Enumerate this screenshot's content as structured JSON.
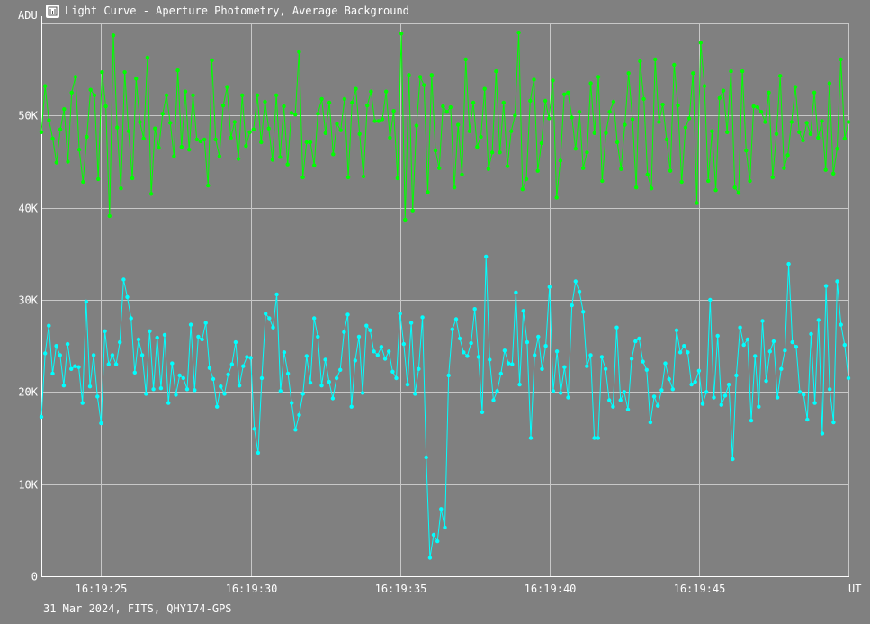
{
  "window": {
    "title": "Light Curve - Aperture Photometry, Average Background",
    "icon": "chart-app-icon",
    "footer": "31 Mar 2024, FITS, QHY174-GPS"
  },
  "colors": {
    "background": "#808080",
    "grid": "#c8c8c8",
    "text": "#ffffff",
    "series_green": "#00ff00",
    "series_cyan": "#00ffff"
  },
  "chart_data": {
    "type": "line",
    "title": "Light Curve - Aperture Photometry, Average Background",
    "ylabel": "ADU",
    "xlabel": "UT",
    "ylim": [
      0,
      60000
    ],
    "xlim": [
      23.0,
      50.0
    ],
    "grid": true,
    "y_ticks": [
      0,
      10000,
      20000,
      30000,
      40000,
      50000
    ],
    "y_tick_labels": [
      "0",
      "10K",
      "20K",
      "30K",
      "40K",
      "50K"
    ],
    "x_ticks": [
      25,
      30,
      35,
      40,
      45
    ],
    "x_tick_labels": [
      "16:19:25",
      "16:19:30",
      "16:19:35",
      "16:19:40",
      "16:19:45"
    ],
    "series": [
      {
        "values": [
          48200,
          53200,
          49500,
          47500,
          44900,
          48500,
          50700,
          45000,
          52500,
          54200,
          46300,
          42800,
          47700,
          52800,
          52200,
          43100,
          54700,
          51000,
          39100,
          58700,
          48700,
          42100,
          54700,
          48300,
          43200,
          54000,
          49300,
          47500,
          56300,
          41500,
          48600,
          46500,
          50200,
          52200,
          49200,
          45600,
          54900,
          46600,
          52600,
          46300,
          52200,
          47400,
          47200,
          47400,
          42400,
          56000,
          47400,
          45600,
          51100,
          53100,
          47600,
          49300,
          45300,
          52200,
          46700,
          48200,
          48500,
          52200,
          47100,
          51500,
          48600,
          45200,
          52200,
          45500,
          51000,
          44700,
          50300,
          50100,
          56900,
          43300,
          47100,
          47100,
          44600,
          50200,
          51800,
          48100,
          51400,
          45800,
          49100,
          48400,
          51800,
          43300,
          51400,
          52900,
          48000,
          43400,
          51100,
          52600,
          49400,
          49400,
          49600,
          52600,
          47600,
          50500,
          43200,
          58900,
          38700,
          54400,
          39700,
          48900,
          54200,
          53300,
          41700,
          54400,
          46200,
          44300,
          51000,
          50400,
          50900,
          42200,
          49000,
          43600,
          56100,
          48300,
          51400,
          46600,
          47700,
          52900,
          44200,
          46000,
          54800,
          46000,
          51400,
          44500,
          48300,
          50000,
          59000,
          42000,
          43100,
          51600,
          53900,
          44000,
          47000,
          51600,
          49700,
          53800,
          41100,
          45100,
          52300,
          52500,
          49800,
          46400,
          50400,
          44300,
          46000,
          53500,
          48100,
          54200,
          42900,
          48100,
          50400,
          51500,
          47100,
          44200,
          49000,
          54600,
          49600,
          42200,
          55900,
          51800,
          43600,
          42100,
          56100,
          49300,
          51200,
          47400,
          44000,
          55500,
          51100,
          42800,
          48700,
          49700,
          54600,
          40500,
          57900,
          53200,
          42900,
          48300,
          41900,
          51900,
          52700,
          48200,
          54800,
          42200,
          41600,
          54800,
          46200,
          42900,
          51000,
          50900,
          50400,
          49300,
          52500,
          43300,
          48000,
          54300,
          44300,
          45700,
          49300,
          53100,
          48200,
          47300,
          49200,
          48000,
          52500,
          47600,
          49400,
          44100,
          53500,
          43700,
          46400,
          56100,
          47500,
          49300
        ],
        "color": "#00ff00"
      },
      {
        "values": [
          17300,
          24200,
          27200,
          22000,
          25000,
          24000,
          20700,
          25200,
          22500,
          22800,
          22700,
          18800,
          29800,
          20600,
          24000,
          19500,
          16600,
          26600,
          23000,
          24000,
          23000,
          25400,
          32200,
          30300,
          28000,
          22100,
          25700,
          24000,
          19800,
          26600,
          20300,
          25900,
          20400,
          26200,
          18800,
          23100,
          19700,
          21800,
          21500,
          20300,
          27300,
          20200,
          26000,
          25700,
          27500,
          22600,
          21400,
          18400,
          20600,
          19800,
          21900,
          23000,
          25400,
          20700,
          22800,
          23800,
          23700,
          16000,
          13400,
          21500,
          28500,
          28000,
          27000,
          30600,
          20100,
          24300,
          22000,
          18800,
          15900,
          17500,
          19800,
          23900,
          21000,
          28000,
          26000,
          20700,
          23500,
          21100,
          19300,
          21500,
          22400,
          26500,
          28400,
          18400,
          23400,
          26000,
          19900,
          27200,
          26700,
          24400,
          24000,
          24900,
          23600,
          24400,
          22200,
          21500,
          28500,
          25200,
          20800,
          27500,
          19800,
          22500,
          28100,
          12900,
          2000,
          4500,
          3800,
          7300,
          5300,
          21800,
          26800,
          27900,
          25800,
          24300,
          23900,
          25300,
          29000,
          23800,
          17800,
          34700,
          23500,
          19100,
          20100,
          22000,
          24500,
          23100,
          23000,
          30800,
          20800,
          28800,
          25400,
          15000,
          24000,
          26000,
          22500,
          25000,
          31400,
          20100,
          24400,
          19900,
          22700,
          19400,
          29400,
          32000,
          30900,
          28700,
          22800,
          24000,
          15000,
          15000,
          23800,
          22500,
          19100,
          18400,
          27000,
          19100,
          20000,
          18100,
          23600,
          25500,
          25800,
          23300,
          22400,
          16700,
          19500,
          18500,
          20200,
          23100,
          21400,
          20300,
          26700,
          24300,
          25000,
          24300,
          20800,
          21100,
          22300,
          18700,
          20000,
          30000,
          19400,
          26100,
          18600,
          19600,
          20800,
          12700,
          21800,
          27000,
          25100,
          25700,
          16900,
          23900,
          18400,
          27700,
          21200,
          24400,
          25500,
          19400,
          22500,
          24500,
          33900,
          25400,
          24900,
          20000,
          19700,
          17000,
          26300,
          18800,
          27800,
          15500,
          31500,
          20300,
          16700,
          32000,
          27300,
          25100,
          21500
        ],
        "color": "#00ffff"
      }
    ]
  }
}
